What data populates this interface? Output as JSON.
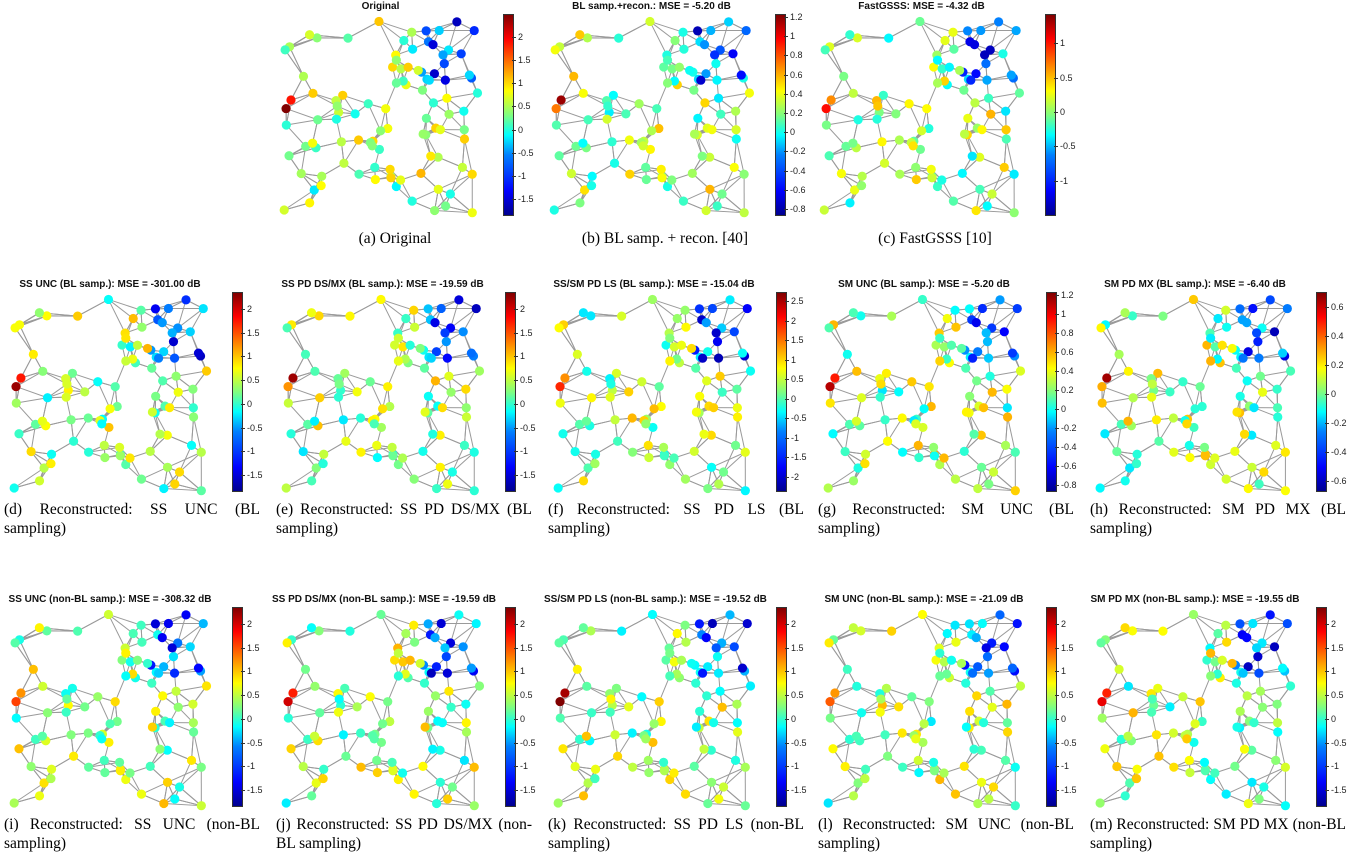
{
  "figure": {
    "panels": [
      {
        "id": "a",
        "title": "Original",
        "caption": "(a) Original",
        "cbar_ticks": [
          "2",
          "1.5",
          "1",
          "0.5",
          "0",
          "-0.5",
          "-1",
          "-1.5"
        ],
        "ticks_start": 0.12,
        "ticks_end": 0.92,
        "seed": 1
      },
      {
        "id": "b",
        "title": "BL samp.+recon.: MSE = -5.20 dB",
        "caption": "(b) BL samp. + recon. [40]",
        "cbar_ticks": [
          "1.2",
          "1",
          "0.8",
          "0.6",
          "0.4",
          "0.2",
          "0",
          "-0.2",
          "-0.4",
          "-0.6",
          "-0.8"
        ],
        "ticks_start": 0.02,
        "ticks_end": 0.97,
        "seed": 2
      },
      {
        "id": "c",
        "title": "FastGSSS: MSE = -4.32 dB",
        "caption": "(c) FastGSSS [10]",
        "cbar_ticks": [
          "1",
          "0.5",
          "0",
          "-0.5",
          "-1"
        ],
        "ticks_start": 0.15,
        "ticks_end": 0.83,
        "seed": 3
      },
      {
        "id": "d",
        "title": "SS UNC (BL samp.): MSE = -301.00 dB",
        "caption": "(d) Reconstructed: SS UNC (BL sampling)",
        "cbar_ticks": [
          "2",
          "1.5",
          "1",
          "0.5",
          "0",
          "-0.5",
          "-1",
          "-1.5"
        ],
        "ticks_start": 0.09,
        "ticks_end": 0.92,
        "seed": 4
      },
      {
        "id": "e",
        "title": "SS PD DS/MX (BL samp.): MSE = -19.59 dB",
        "caption": "(e) Reconstructed: SS PD DS/MX (BL sampling)",
        "cbar_ticks": [
          "2",
          "1.5",
          "1",
          "0.5",
          "0",
          "-0.5",
          "-1",
          "-1.5"
        ],
        "ticks_start": 0.09,
        "ticks_end": 0.92,
        "seed": 5
      },
      {
        "id": "f",
        "title": "SS/SM PD LS (BL samp.): MSE = -15.04 dB",
        "caption": "(f) Reconstructed: SS PD LS (BL sampling)",
        "cbar_ticks": [
          "2.5",
          "2",
          "1.5",
          "1",
          "0.5",
          "0",
          "-0.5",
          "-1",
          "-1.5",
          "-2"
        ],
        "ticks_start": 0.05,
        "ticks_end": 0.93,
        "seed": 6
      },
      {
        "id": "g",
        "title": "SM UNC (BL samp.): MSE = -5.20 dB",
        "caption": "(g) Reconstructed: SM UNC (BL sampling)",
        "cbar_ticks": [
          "1.2",
          "1",
          "0.8",
          "0.6",
          "0.4",
          "0.2",
          "0",
          "-0.2",
          "-0.4",
          "-0.6",
          "-0.8"
        ],
        "ticks_start": 0.02,
        "ticks_end": 0.97,
        "seed": 7
      },
      {
        "id": "h",
        "title": "SM PD MX (BL samp.): MSE = -6.40 dB",
        "caption": "(h) Reconstructed: SM PD MX (BL sampling)",
        "cbar_ticks": [
          "0.6",
          "0.4",
          "0.2",
          "0",
          "-0.2",
          "-0.4",
          "-0.6"
        ],
        "ticks_start": 0.08,
        "ticks_end": 0.95,
        "seed": 8
      },
      {
        "id": "i",
        "title": "SS UNC (non-BL samp.): MSE = -308.32 dB",
        "caption": "(i) Reconstructed: SS UNC (non-BL sampling)",
        "cbar_ticks": [
          "2",
          "1.5",
          "1",
          "0.5",
          "0",
          "-0.5",
          "-1",
          "-1.5"
        ],
        "ticks_start": 0.09,
        "ticks_end": 0.92,
        "seed": 9
      },
      {
        "id": "j",
        "title": "SS PD DS/MX (non-BL samp.): MSE = -19.59 dB",
        "caption": "(j) Reconstructed: SS PD DS/MX (non-BL sampling)",
        "cbar_ticks": [
          "2",
          "1.5",
          "1",
          "0.5",
          "0",
          "-0.5",
          "-1",
          "-1.5"
        ],
        "ticks_start": 0.09,
        "ticks_end": 0.92,
        "seed": 10
      },
      {
        "id": "k",
        "title": "SS/SM PD LS (non-BL samp.): MSE = -19.52 dB",
        "caption": "(k) Reconstructed: SS PD LS (non-BL sampling)",
        "cbar_ticks": [
          "2",
          "1.5",
          "1",
          "0.5",
          "0",
          "-0.5",
          "-1",
          "-1.5"
        ],
        "ticks_start": 0.09,
        "ticks_end": 0.92,
        "seed": 11
      },
      {
        "id": "l",
        "title": "SM UNC (non-BL samp.): MSE = -21.09 dB",
        "caption": "(l) Reconstructed: SM UNC (non-BL sampling)",
        "cbar_ticks": [
          "2",
          "1.5",
          "1",
          "0.5",
          "0",
          "-0.5",
          "-1",
          "-1.5"
        ],
        "ticks_start": 0.09,
        "ticks_end": 0.92,
        "seed": 12
      },
      {
        "id": "m",
        "title": "SM PD MX (non-BL samp.): MSE = -19.55 dB",
        "caption": "(m) Reconstructed: SM PD MX (non-BL sampling)",
        "cbar_ticks": [
          "2",
          "1.5",
          "1",
          "0.5",
          "0",
          "-0.5",
          "-1",
          "-1.5"
        ],
        "ticks_start": 0.09,
        "ticks_end": 0.92,
        "seed": 13
      }
    ]
  }
}
